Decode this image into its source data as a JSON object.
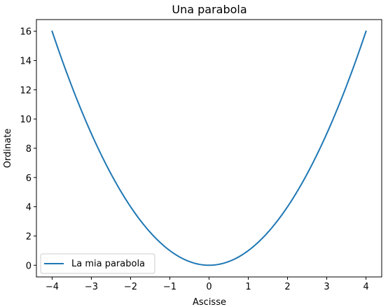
{
  "chart_data": {
    "type": "line",
    "title": "Una parabola",
    "xlabel": "Ascisse",
    "ylabel": "Ordinate",
    "xlim": [
      -4.4,
      4.4
    ],
    "ylim": [
      -0.8,
      16.8
    ],
    "x_ticks": [
      -4,
      -3,
      -2,
      -1,
      0,
      1,
      2,
      3,
      4
    ],
    "x_tick_labels": [
      "−4",
      "−3",
      "−2",
      "−1",
      "0",
      "1",
      "2",
      "3",
      "4"
    ],
    "y_ticks": [
      0,
      2,
      4,
      6,
      8,
      10,
      12,
      14,
      16
    ],
    "y_tick_labels": [
      "0",
      "2",
      "4",
      "6",
      "8",
      "10",
      "12",
      "14",
      "16"
    ],
    "grid": false,
    "legend": {
      "position": "lower-left"
    },
    "series": [
      {
        "name": "La mia parabola",
        "color": "#1f77b4",
        "x": [
          -4,
          -3.5,
          -3,
          -2.5,
          -2,
          -1.5,
          -1,
          -0.5,
          0,
          0.5,
          1,
          1.5,
          2,
          2.5,
          3,
          3.5,
          4
        ],
        "y": [
          16,
          12.25,
          9,
          6.25,
          4,
          2.25,
          1,
          0.25,
          0,
          0.25,
          1,
          2.25,
          4,
          6.25,
          9,
          12.25,
          16
        ]
      }
    ]
  }
}
